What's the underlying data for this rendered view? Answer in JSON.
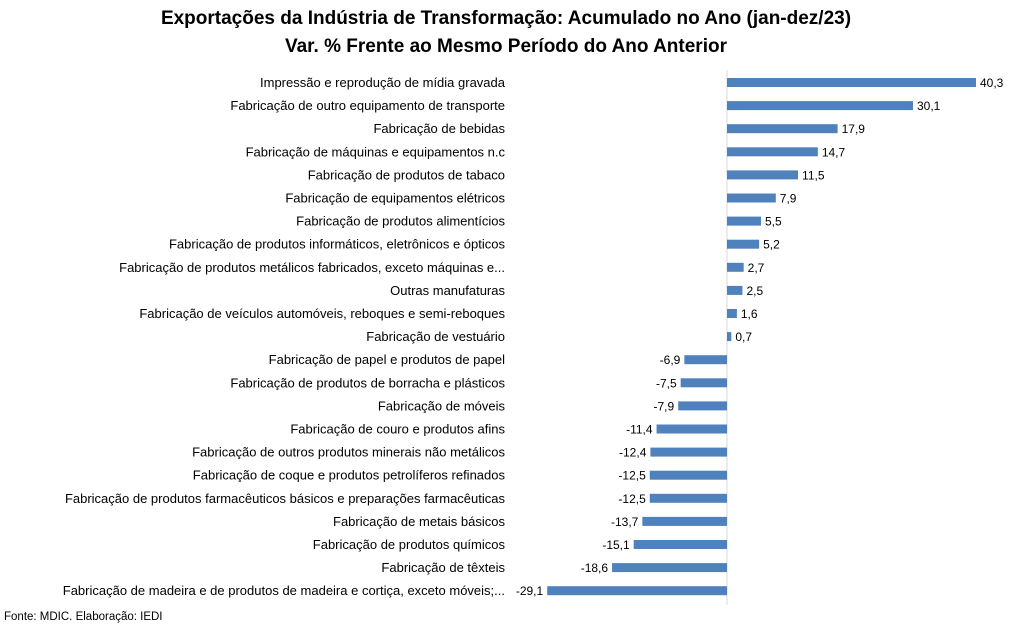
{
  "chart_data": {
    "type": "bar",
    "orientation": "horizontal",
    "title": "Exportações da Indústria de Transformação: Acumulado no Ano (jan-dez/23)",
    "subtitle": "Var. % Frente ao Mesmo Período do Ano Anterior",
    "categories": [
      "Impressão e reprodução de mídia gravada",
      "Fabricação de outro equipamento de transporte",
      "Fabricação de bebidas",
      "Fabricação de máquinas e equipamentos n.c",
      "Fabricação de produtos de tabaco",
      "Fabricação de equipamentos elétricos",
      "Fabricação de produtos alimentícios",
      "Fabricação de produtos informáticos, eletrônicos e ópticos",
      "Fabricação de produtos metálicos fabricados, exceto máquinas e...",
      "Outras manufaturas",
      "Fabricação de veículos automóveis, reboques e semi-reboques",
      "Fabricação de vestuário",
      "Fabricação de papel e produtos de papel",
      "Fabricação de produtos de borracha e plásticos",
      "Fabricação de móveis",
      "Fabricação de couro e produtos afins",
      "Fabricação de outros produtos minerais não metálicos",
      "Fabricação de coque e produtos petrolíferos refinados",
      "Fabricação de produtos farmacêuticos básicos e preparações farmacêuticas",
      "Fabricação de metais básicos",
      "Fabricação de produtos químicos",
      "Fabricação de têxteis",
      "Fabricação de madeira e de produtos de madeira e cortiça, exceto móveis;..."
    ],
    "values": [
      40.3,
      30.1,
      17.9,
      14.7,
      11.5,
      7.9,
      5.5,
      5.2,
      2.7,
      2.5,
      1.6,
      0.7,
      -6.9,
      -7.5,
      -7.9,
      -11.4,
      -12.4,
      -12.5,
      -12.5,
      -13.7,
      -15.1,
      -18.6,
      -29.1
    ],
    "value_labels": [
      "40,3",
      "30,1",
      "17,9",
      "14,7",
      "11,5",
      "7,9",
      "5,5",
      "5,2",
      "2,7",
      "2,5",
      "1,6",
      "0,7",
      "-6,9",
      "-7,5",
      "-7,9",
      "-11,4",
      "-12,4",
      "-12,5",
      "-12,5",
      "-13,7",
      "-15,1",
      "-18,6",
      "-29,1"
    ],
    "xlim": [
      -29.1,
      40.3
    ],
    "grid": false,
    "legend": "none",
    "bar_color": "#4F81BD"
  },
  "footer": {
    "source": "Fonte: MDIC. Elaboração: IEDI"
  }
}
